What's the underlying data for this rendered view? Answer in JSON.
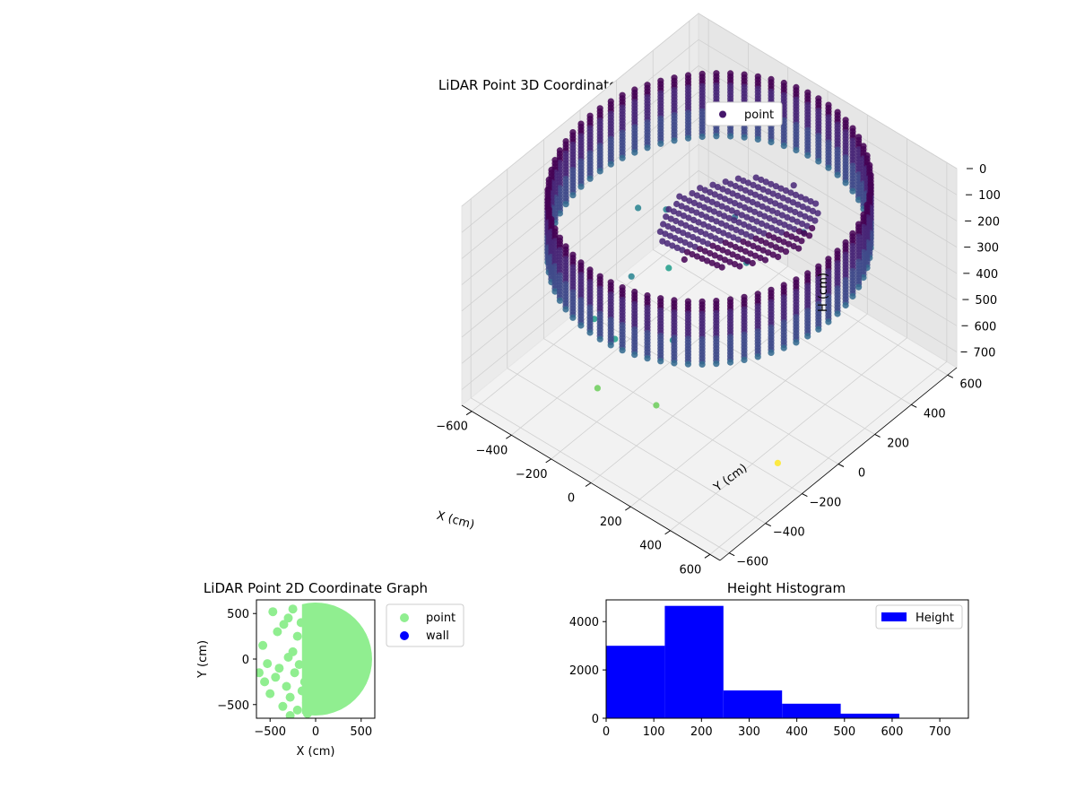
{
  "colors": {
    "scatter2d": "#90ee90",
    "wall": "#0000ff",
    "hist": "#0000ff",
    "legend_point_3d": "#46176b",
    "viridis": [
      "#440154",
      "#482677",
      "#3f4a8a",
      "#31688e",
      "#26838f",
      "#1f9d8a",
      "#6cce5a",
      "#b6de2b",
      "#fee825"
    ]
  },
  "chart_data": [
    {
      "type": "scatter",
      "title": "LiDAR Point 3D Coordinate Graph",
      "xlabel": "X (cm)",
      "ylabel": "Y (cm)",
      "zlabel": "H (cm)",
      "xlim": [
        -650,
        650
      ],
      "ylim": [
        -650,
        650
      ],
      "zlim": [
        0,
        760
      ],
      "z_inverted": true,
      "x_ticks": [
        "−600",
        "−400",
        "−200",
        "0",
        "200",
        "400",
        "600"
      ],
      "y_ticks": [
        "−600",
        "−400",
        "−200",
        "0",
        "200",
        "400",
        "600"
      ],
      "z_ticks": [
        "0",
        "100",
        "200",
        "300",
        "400",
        "500",
        "600",
        "700"
      ],
      "legend": [
        "point"
      ],
      "legend_position": "upper-right",
      "grid": true,
      "colormap": "viridis",
      "wall": {
        "radius": 600,
        "center": [
          0,
          0
        ],
        "height_range": [
          0,
          250
        ],
        "angle_step_deg": 5
      },
      "interior_cluster": {
        "x_range": [
          -150,
          450
        ],
        "y_range": [
          -300,
          300
        ],
        "height_range": [
          0,
          150
        ]
      },
      "scatter_points": [
        [
          -400,
          200,
          380
        ],
        [
          -300,
          -100,
          420
        ],
        [
          -200,
          -300,
          500
        ],
        [
          100,
          -400,
          560
        ],
        [
          -450,
          100,
          340
        ],
        [
          -100,
          250,
          300
        ],
        [
          200,
          300,
          250
        ],
        [
          -250,
          50,
          450
        ],
        [
          0,
          -200,
          470
        ],
        [
          -350,
          -250,
          520
        ],
        [
          50,
          150,
          350
        ],
        [
          -150,
          -450,
          580
        ],
        [
          620,
          -300,
          600
        ]
      ]
    },
    {
      "type": "scatter",
      "title": "LiDAR Point 2D Coordinate Graph",
      "xlabel": "X (cm)",
      "ylabel": "Y (cm)",
      "xlim": [
        -650,
        650
      ],
      "ylim": [
        -650,
        650
      ],
      "x_ticks": [
        "−500",
        "0",
        "500"
      ],
      "y_ticks": [
        "−500",
        "0",
        "500"
      ],
      "legend": [
        "point",
        "wall"
      ],
      "legend_position": "outside-right",
      "filled_region": {
        "center": [
          0,
          0
        ],
        "radius": 620,
        "x_from": -150
      },
      "points": [
        [
          -620,
          -150
        ],
        [
          -560,
          -250
        ],
        [
          -500,
          -380
        ],
        [
          -440,
          -200
        ],
        [
          -400,
          -100
        ],
        [
          -360,
          -520
        ],
        [
          -320,
          -300
        ],
        [
          -300,
          20
        ],
        [
          -280,
          -420
        ],
        [
          -250,
          80
        ],
        [
          -230,
          -150
        ],
        [
          -200,
          -560
        ],
        [
          -180,
          -60
        ],
        [
          -150,
          -350
        ],
        [
          -120,
          -250
        ],
        [
          -100,
          -480
        ],
        [
          -90,
          -600
        ],
        [
          -350,
          380
        ],
        [
          -300,
          450
        ],
        [
          -420,
          300
        ],
        [
          -250,
          550
        ],
        [
          -200,
          250
        ],
        [
          -160,
          400
        ],
        [
          -470,
          520
        ],
        [
          -580,
          150
        ],
        [
          -530,
          -50
        ],
        [
          -280,
          -620
        ],
        [
          -50,
          -350
        ]
      ]
    },
    {
      "type": "bar",
      "title": "Height Histogram",
      "legend": [
        "Height"
      ],
      "legend_position": "upper-right",
      "xlim": [
        0,
        760
      ],
      "ylim": [
        0,
        4900
      ],
      "x_ticks": [
        "0",
        "100",
        "200",
        "300",
        "400",
        "500",
        "600",
        "700"
      ],
      "y_ticks": [
        "0",
        "2000",
        "4000"
      ],
      "bin_edges": [
        0,
        123,
        246,
        369,
        492,
        615,
        738
      ],
      "values": [
        3000,
        4650,
        1150,
        600,
        190,
        20
      ]
    }
  ]
}
